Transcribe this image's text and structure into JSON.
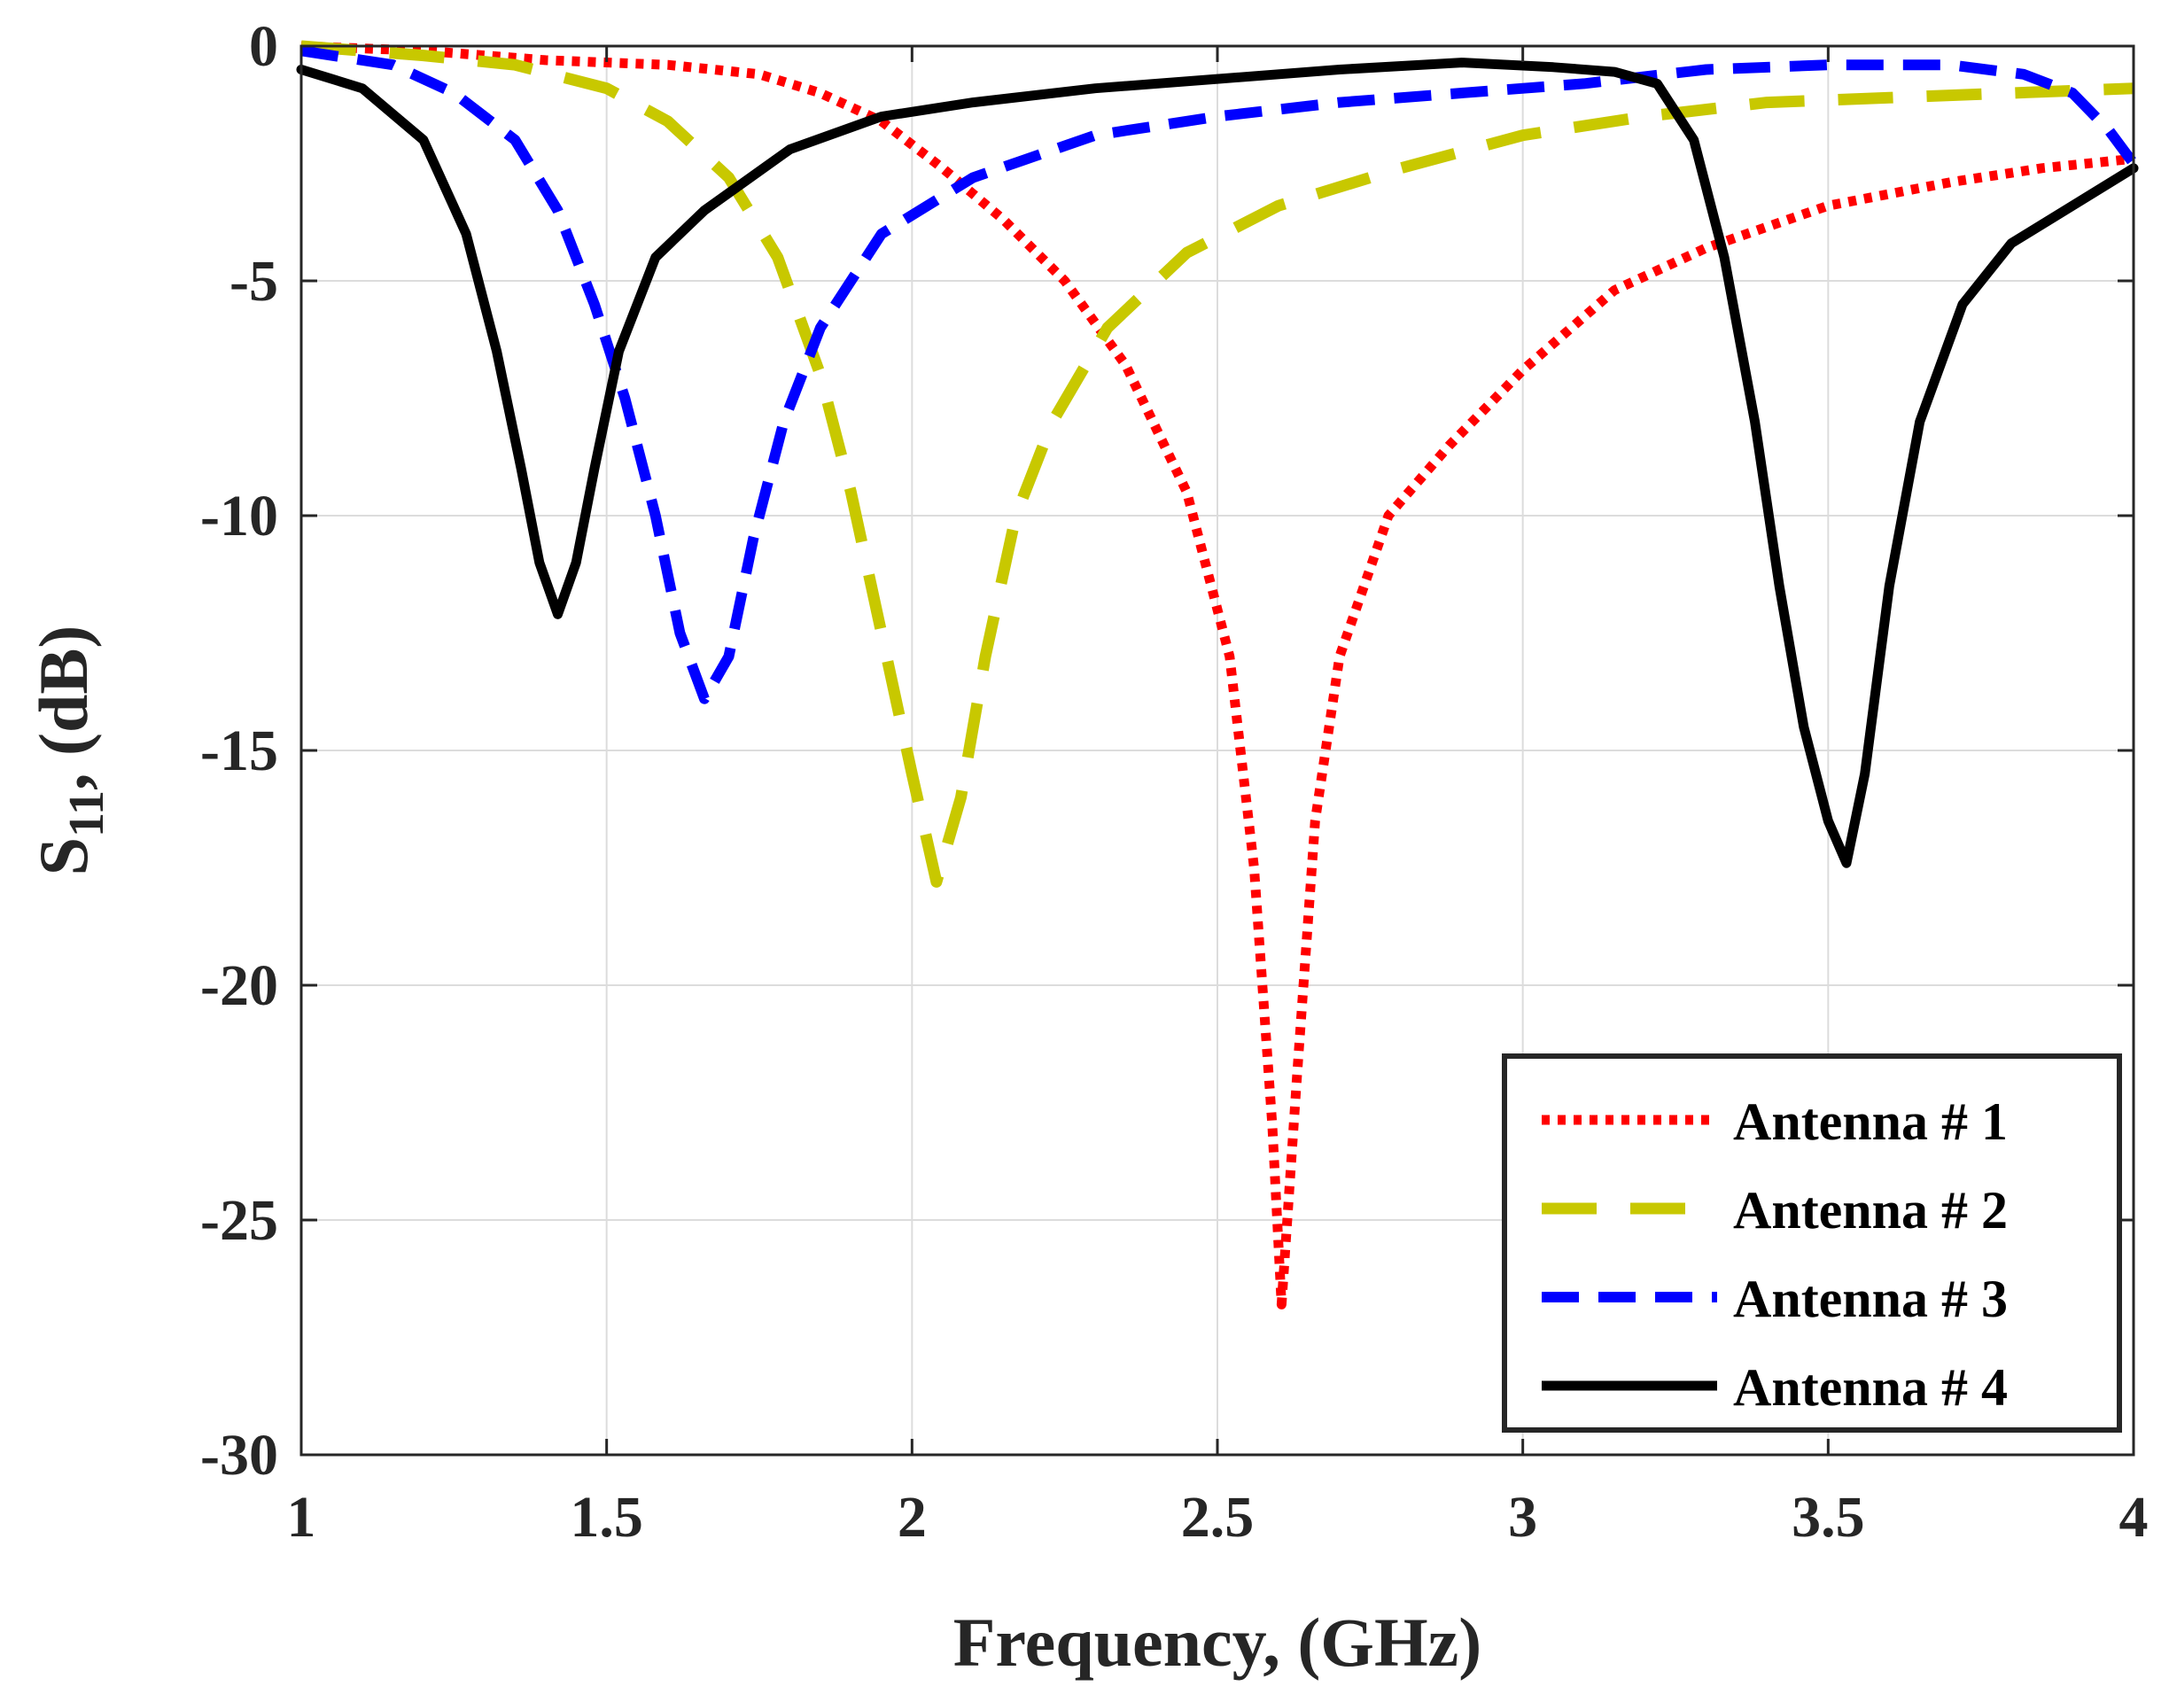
{
  "chart_data": {
    "type": "line",
    "xlabel": "Frequency, (GHz)",
    "ylabel_main": "S",
    "ylabel_sub": "11",
    "ylabel_rest": ", (dB)",
    "xlim": [
      1,
      4
    ],
    "ylim": [
      -30,
      0
    ],
    "xticks": [
      1,
      1.5,
      2,
      2.5,
      3,
      3.5,
      4
    ],
    "xtick_labels": [
      "1",
      "1.5",
      "2",
      "2.5",
      "3",
      "3.5",
      "4"
    ],
    "yticks": [
      0,
      -5,
      -10,
      -15,
      -20,
      -25,
      -30
    ],
    "ytick_labels": [
      "0",
      "-5",
      "-10",
      "-15",
      "-20",
      "-25",
      "-30"
    ],
    "grid": true,
    "legend_position": "bottom-right",
    "series": [
      {
        "name": "Antenna # 1",
        "color": "#ff0000",
        "style": "dotted",
        "points": [
          [
            1.0,
            0.0
          ],
          [
            1.2,
            -0.1
          ],
          [
            1.4,
            -0.3
          ],
          [
            1.6,
            -0.4
          ],
          [
            1.75,
            -0.6
          ],
          [
            1.85,
            -1.0
          ],
          [
            1.95,
            -1.6
          ],
          [
            2.05,
            -2.6
          ],
          [
            2.15,
            -3.7
          ],
          [
            2.25,
            -5.0
          ],
          [
            2.35,
            -6.8
          ],
          [
            2.45,
            -9.5
          ],
          [
            2.52,
            -13.0
          ],
          [
            2.56,
            -17.5
          ],
          [
            2.59,
            -23.0
          ],
          [
            2.605,
            -26.8
          ],
          [
            2.63,
            -22.0
          ],
          [
            2.66,
            -16.5
          ],
          [
            2.7,
            -13.0
          ],
          [
            2.78,
            -10.0
          ],
          [
            2.88,
            -8.5
          ],
          [
            3.0,
            -6.9
          ],
          [
            3.15,
            -5.2
          ],
          [
            3.3,
            -4.3
          ],
          [
            3.5,
            -3.4
          ],
          [
            3.7,
            -2.9
          ],
          [
            3.85,
            -2.6
          ],
          [
            4.0,
            -2.4
          ]
        ]
      },
      {
        "name": "Antenna # 2",
        "color": "#c8c800",
        "style": "long-dash",
        "points": [
          [
            1.0,
            0.0
          ],
          [
            1.2,
            -0.2
          ],
          [
            1.35,
            -0.4
          ],
          [
            1.5,
            -0.9
          ],
          [
            1.6,
            -1.6
          ],
          [
            1.7,
            -2.8
          ],
          [
            1.78,
            -4.5
          ],
          [
            1.85,
            -7.0
          ],
          [
            1.9,
            -9.5
          ],
          [
            1.95,
            -12.5
          ],
          [
            2.0,
            -15.5
          ],
          [
            2.04,
            -17.8
          ],
          [
            2.08,
            -16.0
          ],
          [
            2.12,
            -13.0
          ],
          [
            2.17,
            -10.0
          ],
          [
            2.23,
            -8.0
          ],
          [
            2.32,
            -6.0
          ],
          [
            2.45,
            -4.4
          ],
          [
            2.6,
            -3.4
          ],
          [
            2.8,
            -2.6
          ],
          [
            3.0,
            -1.9
          ],
          [
            3.2,
            -1.5
          ],
          [
            3.4,
            -1.2
          ],
          [
            3.6,
            -1.1
          ],
          [
            3.8,
            -1.0
          ],
          [
            4.0,
            -0.9
          ]
        ]
      },
      {
        "name": "Antenna # 3",
        "color": "#0000ff",
        "style": "dashed",
        "points": [
          [
            1.0,
            -0.1
          ],
          [
            1.15,
            -0.4
          ],
          [
            1.25,
            -1.0
          ],
          [
            1.35,
            -2.0
          ],
          [
            1.42,
            -3.5
          ],
          [
            1.48,
            -5.5
          ],
          [
            1.53,
            -7.5
          ],
          [
            1.58,
            -10.0
          ],
          [
            1.62,
            -12.5
          ],
          [
            1.66,
            -13.9
          ],
          [
            1.7,
            -13.0
          ],
          [
            1.74,
            -10.5
          ],
          [
            1.79,
            -8.0
          ],
          [
            1.85,
            -6.0
          ],
          [
            1.95,
            -4.0
          ],
          [
            2.1,
            -2.8
          ],
          [
            2.3,
            -1.9
          ],
          [
            2.5,
            -1.5
          ],
          [
            2.7,
            -1.2
          ],
          [
            2.9,
            -1.0
          ],
          [
            3.1,
            -0.8
          ],
          [
            3.3,
            -0.5
          ],
          [
            3.5,
            -0.4
          ],
          [
            3.7,
            -0.4
          ],
          [
            3.82,
            -0.6
          ],
          [
            3.9,
            -1.0
          ],
          [
            3.96,
            -1.8
          ],
          [
            4.0,
            -2.5
          ]
        ]
      },
      {
        "name": "Antenna # 4",
        "color": "#000000",
        "style": "solid",
        "points": [
          [
            1.0,
            -0.5
          ],
          [
            1.1,
            -0.9
          ],
          [
            1.2,
            -2.0
          ],
          [
            1.27,
            -4.0
          ],
          [
            1.32,
            -6.5
          ],
          [
            1.36,
            -9.0
          ],
          [
            1.39,
            -11.0
          ],
          [
            1.42,
            -12.1
          ],
          [
            1.45,
            -11.0
          ],
          [
            1.48,
            -9.0
          ],
          [
            1.52,
            -6.5
          ],
          [
            1.58,
            -4.5
          ],
          [
            1.66,
            -3.5
          ],
          [
            1.8,
            -2.2
          ],
          [
            1.95,
            -1.5
          ],
          [
            2.1,
            -1.2
          ],
          [
            2.3,
            -0.9
          ],
          [
            2.5,
            -0.7
          ],
          [
            2.7,
            -0.5
          ],
          [
            2.9,
            -0.35
          ],
          [
            3.05,
            -0.45
          ],
          [
            3.15,
            -0.55
          ],
          [
            3.22,
            -0.8
          ],
          [
            3.28,
            -2.0
          ],
          [
            3.33,
            -4.5
          ],
          [
            3.38,
            -8.0
          ],
          [
            3.42,
            -11.5
          ],
          [
            3.46,
            -14.5
          ],
          [
            3.5,
            -16.5
          ],
          [
            3.53,
            -17.4
          ],
          [
            3.56,
            -15.5
          ],
          [
            3.6,
            -11.5
          ],
          [
            3.65,
            -8.0
          ],
          [
            3.72,
            -5.5
          ],
          [
            3.8,
            -4.2
          ],
          [
            3.9,
            -3.4
          ],
          [
            4.0,
            -2.6
          ]
        ]
      }
    ]
  }
}
